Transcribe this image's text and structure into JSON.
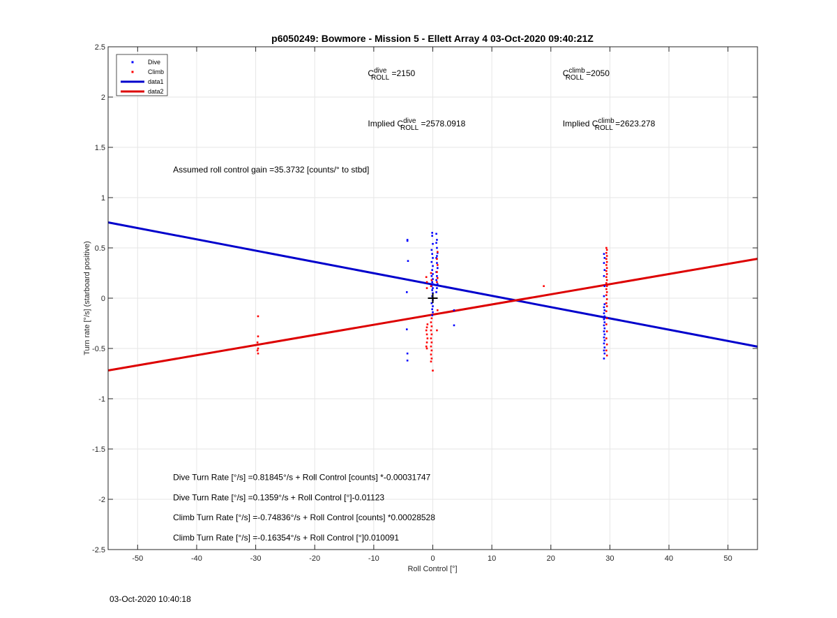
{
  "chart_data": {
    "type": "scatter",
    "title": "p6050249: Bowmore - Mission 5 - Ellett Array 4 03-Oct-2020 09:40:21Z",
    "xlabel": "Roll Control [°]",
    "ylabel": "Turn rate [°/s] (starboard positive)",
    "xlim": [
      -55,
      55
    ],
    "ylim": [
      -2.5,
      2.5
    ],
    "xticks": [
      -50,
      -40,
      -30,
      -20,
      -10,
      0,
      10,
      20,
      30,
      40,
      50
    ],
    "yticks": [
      -2.5,
      -2,
      -1.5,
      -1,
      -0.5,
      0,
      0.5,
      1,
      1.5,
      2,
      2.5
    ],
    "grid": true,
    "legend_position": "top-left",
    "series": [
      {
        "name": "Dive",
        "kind": "points",
        "color": "#0000ff",
        "points": [
          [
            -4.3,
            0.58
          ],
          [
            -4.3,
            0.57
          ],
          [
            -4.2,
            0.37
          ],
          [
            -4.4,
            0.06
          ],
          [
            -4.4,
            -0.31
          ],
          [
            -4.3,
            -0.55
          ],
          [
            -4.3,
            -0.62
          ],
          [
            -0.1,
            0.65
          ],
          [
            -0.1,
            0.62
          ],
          [
            0.0,
            0.54
          ],
          [
            -0.2,
            0.48
          ],
          [
            -0.1,
            0.44
          ],
          [
            0.0,
            0.4
          ],
          [
            -0.2,
            0.36
          ],
          [
            0.0,
            0.32
          ],
          [
            -0.1,
            0.28
          ],
          [
            0.0,
            0.24
          ],
          [
            -0.2,
            0.22
          ],
          [
            0.0,
            0.19
          ],
          [
            -0.1,
            0.16
          ],
          [
            0.0,
            0.14
          ],
          [
            -0.2,
            0.12
          ],
          [
            0.0,
            0.1
          ],
          [
            -0.1,
            0.08
          ],
          [
            0.0,
            0.05
          ],
          [
            -0.1,
            0.02
          ],
          [
            0.0,
            -0.02
          ],
          [
            -0.2,
            -0.05
          ],
          [
            0.0,
            -0.08
          ],
          [
            -0.1,
            -0.11
          ],
          [
            0.0,
            -0.14
          ],
          [
            -0.1,
            -0.17
          ],
          [
            0.6,
            0.64
          ],
          [
            0.7,
            0.58
          ],
          [
            0.6,
            0.55
          ],
          [
            0.7,
            0.5
          ],
          [
            0.8,
            0.45
          ],
          [
            0.6,
            0.4
          ],
          [
            0.7,
            0.35
          ],
          [
            0.8,
            0.3
          ],
          [
            0.6,
            0.26
          ],
          [
            0.7,
            0.22
          ],
          [
            0.6,
            0.18
          ],
          [
            0.8,
            0.14
          ],
          [
            0.7,
            0.1
          ],
          [
            0.6,
            0.06
          ],
          [
            0.8,
            0.3
          ],
          [
            0.7,
            0.42
          ],
          [
            3.6,
            -0.12
          ],
          [
            3.6,
            -0.27
          ],
          [
            29.0,
            0.44
          ],
          [
            29.1,
            0.4
          ],
          [
            29.0,
            0.35
          ],
          [
            29.1,
            0.28
          ],
          [
            29.0,
            0.22
          ],
          [
            29.1,
            0.12
          ],
          [
            29.0,
            0.02
          ],
          [
            29.1,
            -0.06
          ],
          [
            29.0,
            -0.09
          ],
          [
            29.1,
            -0.12
          ],
          [
            29.0,
            -0.15
          ],
          [
            29.1,
            -0.18
          ],
          [
            29.0,
            -0.21
          ],
          [
            29.1,
            -0.24
          ],
          [
            29.0,
            -0.27
          ],
          [
            29.1,
            -0.3
          ],
          [
            29.0,
            -0.33
          ],
          [
            29.1,
            -0.36
          ],
          [
            29.0,
            -0.39
          ],
          [
            29.1,
            -0.42
          ],
          [
            29.0,
            -0.45
          ],
          [
            29.1,
            -0.49
          ],
          [
            29.0,
            -0.52
          ],
          [
            29.1,
            -0.55
          ],
          [
            29.0,
            -0.6
          ]
        ]
      },
      {
        "name": "Climb",
        "kind": "points",
        "color": "#ff0000",
        "points": [
          [
            -29.6,
            -0.18
          ],
          [
            -29.6,
            -0.38
          ],
          [
            -29.7,
            -0.44
          ],
          [
            -29.6,
            -0.5
          ],
          [
            -29.7,
            -0.52
          ],
          [
            -29.6,
            -0.55
          ],
          [
            -1.0,
            0.1
          ],
          [
            -1.0,
            0.16
          ],
          [
            -1.1,
            0.21
          ],
          [
            -0.9,
            -0.26
          ],
          [
            -1.0,
            -0.29
          ],
          [
            -1.1,
            -0.32
          ],
          [
            -1.0,
            -0.36
          ],
          [
            -0.9,
            -0.4
          ],
          [
            -1.0,
            -0.44
          ],
          [
            -1.1,
            -0.48
          ],
          [
            -1.0,
            -0.5
          ],
          [
            -0.3,
            0.25
          ],
          [
            -0.2,
            0.18
          ],
          [
            -0.3,
            0.12
          ],
          [
            -0.2,
            -0.2
          ],
          [
            -0.3,
            -0.24
          ],
          [
            -0.2,
            -0.28
          ],
          [
            -0.3,
            -0.32
          ],
          [
            -0.2,
            -0.36
          ],
          [
            -0.3,
            -0.4
          ],
          [
            -0.2,
            -0.44
          ],
          [
            -0.3,
            -0.48
          ],
          [
            -0.2,
            -0.52
          ],
          [
            -0.3,
            -0.56
          ],
          [
            -0.2,
            -0.6
          ],
          [
            -0.3,
            -0.63
          ],
          [
            0.0,
            -0.72
          ],
          [
            0.8,
            0.46
          ],
          [
            0.7,
            0.39
          ],
          [
            0.8,
            0.33
          ],
          [
            0.7,
            0.26
          ],
          [
            0.8,
            0.2
          ],
          [
            0.7,
            0.16
          ],
          [
            0.8,
            -0.12
          ],
          [
            0.7,
            -0.32
          ],
          [
            18.8,
            0.12
          ],
          [
            29.4,
            0.5
          ],
          [
            29.5,
            0.48
          ],
          [
            29.4,
            0.45
          ],
          [
            29.5,
            0.42
          ],
          [
            29.4,
            0.39
          ],
          [
            29.5,
            0.36
          ],
          [
            29.4,
            0.33
          ],
          [
            29.5,
            0.3
          ],
          [
            29.4,
            0.27
          ],
          [
            29.5,
            0.24
          ],
          [
            29.4,
            0.21
          ],
          [
            29.5,
            0.18
          ],
          [
            29.4,
            0.15
          ],
          [
            29.5,
            0.12
          ],
          [
            29.4,
            0.09
          ],
          [
            29.5,
            0.06
          ],
          [
            29.4,
            0.03
          ],
          [
            29.5,
            -0.01
          ],
          [
            29.4,
            -0.05
          ],
          [
            29.5,
            -0.08
          ],
          [
            29.4,
            -0.13
          ],
          [
            29.5,
            -0.2
          ],
          [
            29.4,
            -0.26
          ],
          [
            29.5,
            -0.33
          ],
          [
            29.4,
            -0.4
          ],
          [
            29.5,
            -0.46
          ],
          [
            29.4,
            -0.52
          ],
          [
            29.5,
            -0.57
          ]
        ]
      },
      {
        "name": "data1",
        "kind": "line",
        "color": "#0000cc",
        "intercept": 0.1359,
        "slope": -0.01123
      },
      {
        "name": "data2",
        "kind": "line",
        "color": "#dd0000",
        "intercept": -0.16354,
        "slope": 0.010091
      }
    ],
    "marker": {
      "name": "origin",
      "x": 0,
      "y": 0,
      "symbol": "+",
      "color": "#000000"
    },
    "annotations": {
      "c_roll_dive": {
        "prefix": "C",
        "sup": "dive",
        "sub": "ROLL",
        "value": " =2150",
        "x": -11,
        "y": 2.21
      },
      "c_roll_climb": {
        "prefix": "C",
        "sup": "climb",
        "sub": "ROLL",
        "value": " =2050",
        "x": 22,
        "y": 2.21
      },
      "implied_dive": {
        "prefix": "Implied C",
        "sup": "dive",
        "sub": "ROLL",
        "value": " =2578.0918",
        "x": -11,
        "y": 1.71
      },
      "implied_climb": {
        "prefix": "Implied C",
        "sup": "climb",
        "sub": "ROLL",
        "value": " =2623.278",
        "x": 22,
        "y": 1.71
      },
      "gain": {
        "text": "Assumed roll control gain =35.3732 [counts/° to stbd]",
        "x": -44,
        "y": 1.25
      },
      "fit_lines": [
        {
          "text": "Dive Turn Rate [°/s] =0.81845°/s + Roll Control [counts] *-0.00031747",
          "x": -44,
          "y": -1.81
        },
        {
          "text": "Dive Turn Rate [°/s] =0.1359°/s + Roll Control [°]-0.01123",
          "x": -44,
          "y": -2.01
        },
        {
          "text": "Climb Turn Rate [°/s] =-0.74836°/s + Roll Control [counts] *0.00028528",
          "x": -44,
          "y": -2.21
        },
        {
          "text": "Climb Turn Rate [°/s] =-0.16354°/s + Roll Control [°]0.010091",
          "x": -44,
          "y": -2.41
        }
      ]
    }
  },
  "footer": {
    "timestamp": "03-Oct-2020 10:40:18"
  }
}
